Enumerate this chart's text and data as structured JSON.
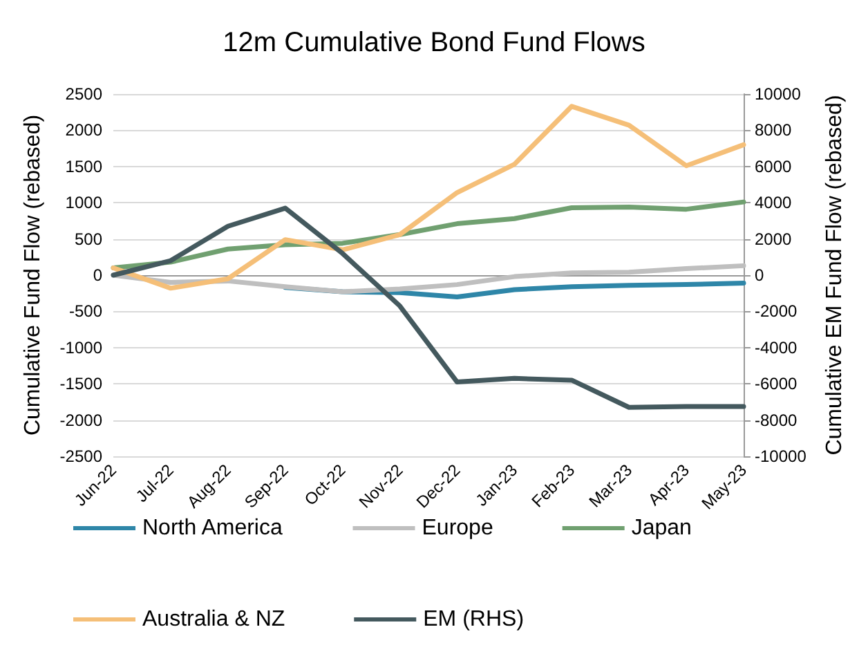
{
  "chart_data": {
    "type": "line",
    "title": "12m Cumulative Bond Fund Flows",
    "ylabel": "Cumulative Fund Flow (rebased)",
    "y2label": "Cumulative EM Fund Flow (rebased)",
    "categories": [
      "Jun-22",
      "Jul-22",
      "Aug-22",
      "Sep-22",
      "Oct-22",
      "Nov-22",
      "Dec-22",
      "Jan-23",
      "Feb-23",
      "Mar-23",
      "Apr-23",
      "May-23"
    ],
    "series": [
      {
        "name": "North America",
        "color": "#2e86a8",
        "values": [
          null,
          null,
          null,
          -170,
          -230,
          -240,
          -300,
          -200,
          -160,
          -140,
          -130,
          -110
        ]
      },
      {
        "name": "Europe",
        "color": "#bfbfbf",
        "values": [
          0,
          -100,
          -80,
          -160,
          -230,
          -190,
          -130,
          -20,
          30,
          40,
          90,
          130
        ]
      },
      {
        "name": "Japan",
        "color": "#70a070",
        "values": [
          100,
          180,
          360,
          420,
          440,
          560,
          710,
          780,
          930,
          940,
          910,
          1010
        ]
      },
      {
        "name": "Australia & NZ",
        "color": "#f5bf78",
        "values": [
          100,
          -180,
          -50,
          490,
          350,
          560,
          1140,
          1530,
          2330,
          2070,
          1510,
          1800
        ]
      },
      {
        "name": "EM (RHS)",
        "color": "#44595e",
        "axis": "y2",
        "values": [
          0,
          800,
          2700,
          3700,
          1200,
          -1700,
          -5900,
          -5700,
          -5800,
          -7300,
          -7250,
          -7250
        ]
      }
    ],
    "ylim": [
      -2500,
      2500
    ],
    "yticks": [
      -2500,
      -2000,
      -1500,
      -1000,
      -500,
      0,
      500,
      1000,
      1500,
      2000,
      2500
    ],
    "y2lim": [
      -10000,
      10000
    ],
    "y2ticks": [
      -10000,
      -8000,
      -6000,
      -4000,
      -2000,
      0,
      2000,
      4000,
      6000,
      8000,
      10000
    ],
    "grid": "y",
    "legend": "bottom",
    "marker": "none",
    "line_style": "solid"
  }
}
